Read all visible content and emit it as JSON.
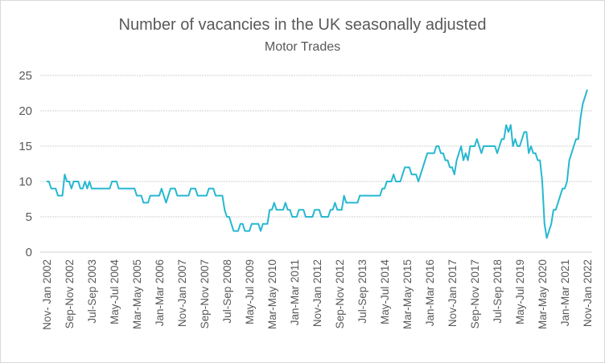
{
  "chart_data": {
    "type": "line",
    "title": "Number of vacancies in the UK seasonally adjusted",
    "subtitle": "Motor Trades",
    "xlabel": "",
    "ylabel": "",
    "ylim": [
      0,
      25
    ],
    "yticks": [
      0,
      5,
      10,
      15,
      20,
      25
    ],
    "grid": true,
    "legend": "none",
    "line_color": "#27B8D0",
    "x_tick_every": 10,
    "x_tick_labels": [
      "Nov- Jan 2002",
      "Sep-Nov 2002",
      "Jul-Sep 2003",
      "May-Jul 2004",
      "Mar-May 2005",
      "Jan-Mar 2006",
      "Nov-Jan 2007",
      "Sep-Nov 2007",
      "Jul-Sep 2008",
      "May-Jul 2009",
      "Mar-May 2010",
      "Jan-Mar 2011",
      "Nov-Jan 2012",
      "Sep-Nov 2012",
      "Jul-Sep 2013",
      "May-Jul 2014",
      "Mar-May 2015",
      "Jan-Mar 2016",
      "Nov-Jan 2017",
      "Sep-Nov 2017",
      "Jul-Sep 2018",
      "May-Jul 2019",
      "Mar-May 2020",
      "Jan-Mar 2021",
      "Nov-Jan 2022"
    ],
    "series": [
      {
        "name": "Motor Trades",
        "values": [
          10,
          10,
          9,
          9,
          9,
          8,
          8,
          8,
          11,
          10,
          10,
          9,
          10,
          10,
          10,
          9,
          9,
          10,
          9,
          10,
          9,
          9,
          9,
          9,
          9,
          9,
          9,
          9,
          9,
          10,
          10,
          10,
          9,
          9,
          9,
          9,
          9,
          9,
          9,
          9,
          8,
          8,
          8,
          7,
          7,
          7,
          8,
          8,
          8,
          8,
          8,
          9,
          8,
          7,
          8,
          9,
          9,
          9,
          8,
          8,
          8,
          8,
          8,
          8,
          9,
          9,
          9,
          8,
          8,
          8,
          8,
          8,
          9,
          9,
          9,
          8,
          8,
          8,
          8,
          6,
          5,
          5,
          4,
          3,
          3,
          3,
          4,
          4,
          3,
          3,
          3,
          4,
          4,
          4,
          4,
          3,
          4,
          4,
          4,
          6,
          6,
          7,
          6,
          6,
          6,
          6,
          7,
          6,
          6,
          5,
          5,
          5,
          6,
          6,
          6,
          5,
          5,
          5,
          5,
          6,
          6,
          6,
          5,
          5,
          5,
          5,
          6,
          6,
          7,
          6,
          6,
          6,
          8,
          7,
          7,
          7,
          7,
          7,
          7,
          8,
          8,
          8,
          8,
          8,
          8,
          8,
          8,
          8,
          8,
          9,
          9,
          10,
          10,
          10,
          11,
          10,
          10,
          10,
          11,
          12,
          12,
          12,
          11,
          11,
          11,
          10,
          11,
          12,
          13,
          14,
          14,
          14,
          14,
          15,
          15,
          14,
          14,
          13,
          13,
          12,
          12,
          11,
          13,
          14,
          15,
          13,
          14,
          13,
          15,
          15,
          15,
          16,
          15,
          14,
          15,
          15,
          15,
          15,
          15,
          15,
          14,
          15,
          16,
          16,
          18,
          17,
          18,
          15,
          16,
          15,
          15,
          16,
          17,
          17,
          14,
          15,
          14,
          14,
          13,
          13,
          10,
          4,
          2,
          3,
          4,
          6,
          6,
          7,
          8,
          9,
          9,
          10,
          13,
          14,
          15,
          16,
          16,
          19,
          21,
          22,
          23
        ]
      }
    ]
  }
}
